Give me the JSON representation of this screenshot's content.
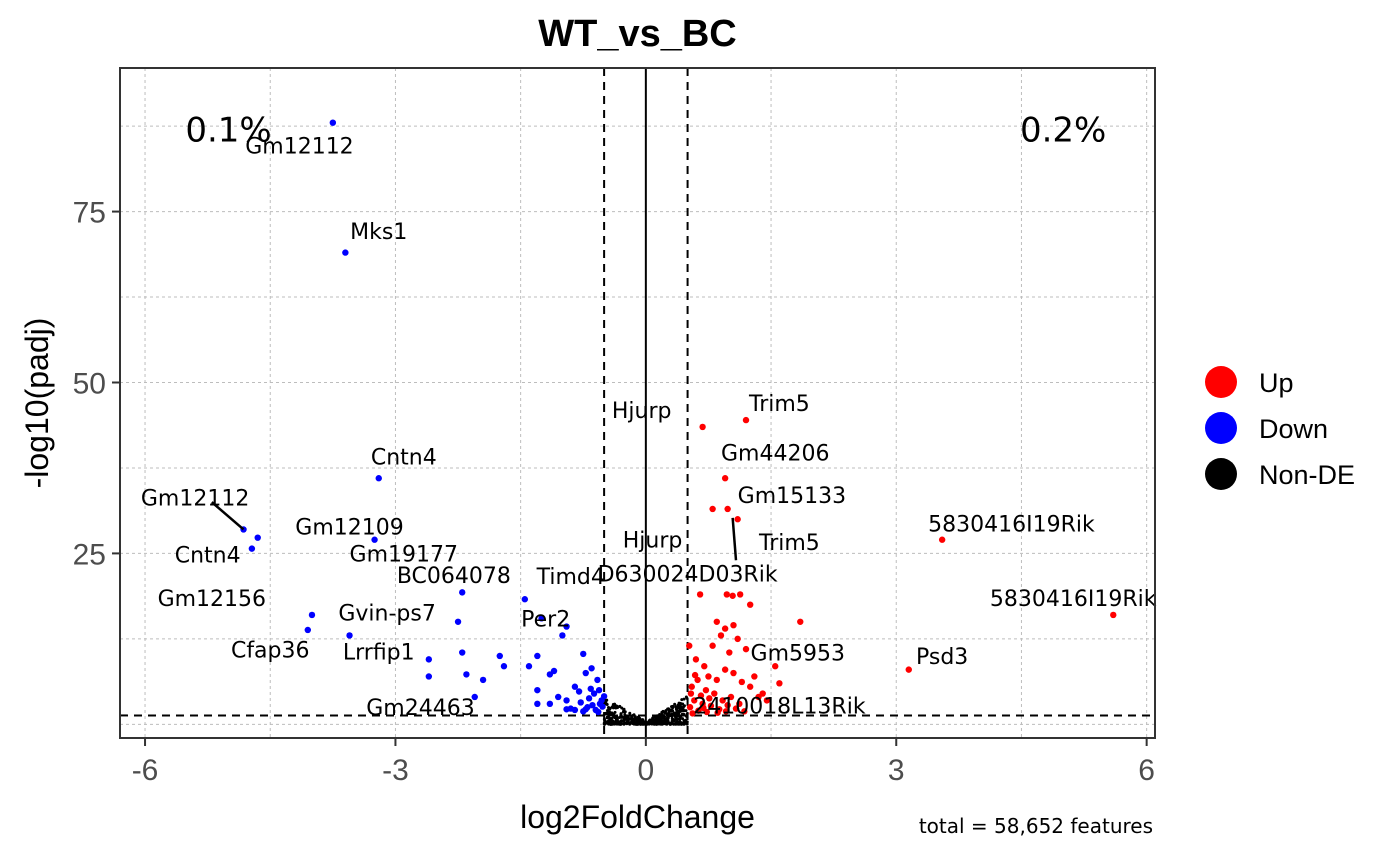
{
  "chart_data": {
    "type": "scatter",
    "title": "WT_vs_BC",
    "xlabel": "log2FoldChange",
    "ylabel": "-log10(padj)",
    "xlim": [
      -6.3,
      6.1
    ],
    "ylim": [
      -2,
      96
    ],
    "x_ticks": [
      -6,
      -3,
      0,
      3,
      6
    ],
    "x_tick_labels": [
      "-6",
      "-3",
      "0",
      "3",
      "6"
    ],
    "y_ticks": [
      25,
      50,
      75
    ],
    "y_tick_labels": [
      "25",
      "50",
      "75"
    ],
    "grid": true,
    "legend_position": "right",
    "legend": [
      {
        "label": "Up",
        "color": "#ff0000"
      },
      {
        "label": "Down",
        "color": "#0000ff"
      },
      {
        "label": "Non-DE",
        "color": "#000000"
      }
    ],
    "thresholds": {
      "fold_change": [
        -0.5,
        0.5
      ],
      "padj_line": 1.3
    },
    "caption": "total = 58,652 features",
    "percent_annotations": [
      {
        "text": "0.1%",
        "x": -5,
        "y": 87
      },
      {
        "text": "0.2%",
        "x": 5,
        "y": 87
      }
    ],
    "series": [
      {
        "name": "Up",
        "color": "#ff0000",
        "points": [
          [
            0.68,
            43.5
          ],
          [
            1.2,
            44.5
          ],
          [
            0.95,
            36
          ],
          [
            0.8,
            31.5
          ],
          [
            0.98,
            31.5
          ],
          [
            1.1,
            30
          ],
          [
            3.55,
            27
          ],
          [
            5.6,
            16
          ],
          [
            1.85,
            15
          ],
          [
            3.15,
            8
          ],
          [
            0.65,
            19
          ],
          [
            0.97,
            19
          ],
          [
            1.04,
            18.8
          ],
          [
            1.13,
            19
          ],
          [
            1.25,
            17.5
          ],
          [
            0.52,
            11.5
          ],
          [
            0.85,
            15
          ],
          [
            0.95,
            14
          ],
          [
            1.05,
            14.5
          ],
          [
            0.9,
            13
          ],
          [
            1.1,
            12.5
          ],
          [
            1.2,
            11
          ],
          [
            0.8,
            11.5
          ],
          [
            1.0,
            10.5
          ],
          [
            1.55,
            8.5
          ],
          [
            1.6,
            6
          ],
          [
            1.3,
            7
          ],
          [
            1.4,
            4.5
          ],
          [
            0.6,
            9.5
          ],
          [
            0.7,
            8.5
          ],
          [
            0.75,
            7
          ],
          [
            0.85,
            6.5
          ],
          [
            0.95,
            8
          ],
          [
            1.05,
            7.5
          ],
          [
            1.15,
            6.2
          ],
          [
            1.25,
            5.5
          ],
          [
            1.35,
            4
          ],
          [
            1.45,
            3.5
          ],
          [
            0.55,
            5.5
          ],
          [
            0.62,
            6.5
          ],
          [
            0.72,
            5
          ],
          [
            0.82,
            4.5
          ],
          [
            0.92,
            3.5
          ],
          [
            1.02,
            4
          ],
          [
            1.12,
            3
          ],
          [
            0.53,
            2.5
          ],
          [
            0.58,
            3.5
          ],
          [
            0.63,
            2
          ],
          [
            0.68,
            3
          ],
          [
            0.73,
            1.8
          ],
          [
            0.78,
            2.7
          ],
          [
            0.88,
            2.2
          ],
          [
            0.98,
            2.8
          ],
          [
            1.08,
            2.3
          ],
          [
            1.18,
            1.9
          ],
          [
            0.56,
            1.6
          ],
          [
            0.66,
            4.2
          ],
          [
            0.76,
            3.8
          ],
          [
            0.86,
            1.7
          ],
          [
            0.96,
            1.9
          ],
          [
            0.54,
            4.5
          ],
          [
            0.59,
            7.2
          ],
          [
            0.69,
            2.4
          ]
        ]
      },
      {
        "name": "Down",
        "color": "#0000ff",
        "points": [
          [
            -3.75,
            88
          ],
          [
            -3.6,
            69
          ],
          [
            -3.2,
            36
          ],
          [
            -4.82,
            28.5
          ],
          [
            -4.65,
            27.3
          ],
          [
            -4.72,
            25.7
          ],
          [
            -3.25,
            27
          ],
          [
            -2.2,
            19.3
          ],
          [
            -1.45,
            18.3
          ],
          [
            -1.25,
            15.5
          ],
          [
            -0.95,
            14.3
          ],
          [
            -1.0,
            13
          ],
          [
            -4.0,
            16
          ],
          [
            -4.05,
            13.8
          ],
          [
            -3.55,
            13
          ],
          [
            -2.25,
            15
          ],
          [
            -2.6,
            9.5
          ],
          [
            -2.2,
            10.5
          ],
          [
            -1.75,
            10
          ],
          [
            -1.7,
            8.5
          ],
          [
            -1.3,
            10
          ],
          [
            -1.4,
            8.5
          ],
          [
            -2.6,
            7
          ],
          [
            -2.15,
            7.3
          ],
          [
            -1.95,
            6.5
          ],
          [
            -2.05,
            4
          ],
          [
            -1.3,
            5
          ],
          [
            -1.3,
            3
          ],
          [
            -1.15,
            3
          ],
          [
            -1.15,
            7.3
          ],
          [
            -1.1,
            7.8
          ],
          [
            -0.75,
            10.3
          ],
          [
            -0.72,
            7.5
          ],
          [
            -0.65,
            8.2
          ],
          [
            -0.58,
            6.5
          ],
          [
            -0.62,
            4.5
          ],
          [
            -0.55,
            3
          ],
          [
            -1.05,
            4
          ],
          [
            -0.95,
            3.5
          ],
          [
            -0.85,
            5.5
          ],
          [
            -0.8,
            4.8
          ],
          [
            -0.78,
            3.2
          ],
          [
            -0.7,
            2.5
          ],
          [
            -0.68,
            3.8
          ],
          [
            -0.66,
            5.2
          ],
          [
            -0.6,
            2.1
          ],
          [
            -0.57,
            1.8
          ],
          [
            -0.52,
            2.6
          ],
          [
            -0.9,
            2.3
          ],
          [
            -0.95,
            2.2
          ],
          [
            -0.75,
            1.9
          ],
          [
            -0.85,
            2.1
          ],
          [
            -0.53,
            3.5
          ],
          [
            -0.56,
            5
          ],
          [
            -0.64,
            2.8
          ],
          [
            -0.72,
            2.2
          ],
          [
            -0.5,
            4.1
          ]
        ]
      }
    ],
    "non_de_description": "dense cluster of points near origin within |log2FoldChange| < 0.5",
    "gene_labels": [
      {
        "text": "Gm12112",
        "x": -4.15,
        "y": 83.5
      },
      {
        "text": "Mks1",
        "x": -3.2,
        "y": 71
      },
      {
        "text": "Cntn4",
        "x": -2.9,
        "y": 38
      },
      {
        "text": "Gm12112",
        "x": -5.4,
        "y": 32
      },
      {
        "text": "Gm12109",
        "x": -3.55,
        "y": 27.8
      },
      {
        "text": "Cntn4",
        "x": -5.25,
        "y": 23.7
      },
      {
        "text": "Gm19177",
        "x": -2.9,
        "y": 23.8
      },
      {
        "text": "BC064078",
        "x": -2.3,
        "y": 20.7
      },
      {
        "text": "Timd4",
        "x": -0.9,
        "y": 20.5
      },
      {
        "text": "Gm12156",
        "x": -5.2,
        "y": 17.3
      },
      {
        "text": "Gvin-ps7",
        "x": -3.1,
        "y": 15.2
      },
      {
        "text": "Per2",
        "x": -1.2,
        "y": 14.3
      },
      {
        "text": "Cfap36",
        "x": -4.5,
        "y": 9.8
      },
      {
        "text": "Lrrfip1",
        "x": -3.2,
        "y": 9.5
      },
      {
        "text": "Gm24463",
        "x": -2.7,
        "y": 1.4
      },
      {
        "text": "Hjurp",
        "x": -0.05,
        "y": 44.8
      },
      {
        "text": "Trim5",
        "x": 1.6,
        "y": 45.8
      },
      {
        "text": "Gm44206",
        "x": 1.55,
        "y": 38.6
      },
      {
        "text": "Gm15133",
        "x": 1.75,
        "y": 32.4
      },
      {
        "text": "5830416I19Rik",
        "x": 4.38,
        "y": 28.2
      },
      {
        "text": "Hjurp",
        "x": 0.08,
        "y": 25.9
      },
      {
        "text": "Trim5",
        "x": 1.72,
        "y": 25.5
      },
      {
        "text": "D630024D03Rik",
        "x": 0.5,
        "y": 20.9
      },
      {
        "text": "5830416I19Rik",
        "x": 5.12,
        "y": 17.3
      },
      {
        "text": "Gm5953",
        "x": 1.82,
        "y": 9.3
      },
      {
        "text": "Psd3",
        "x": 3.55,
        "y": 8.8
      },
      {
        "text": "2410018L13Rik",
        "x": 1.6,
        "y": 1.6
      }
    ],
    "label_connectors": [
      [
        -5.2,
        32.5,
        -4.82,
        28.5
      ],
      [
        1.04,
        30.2,
        1.08,
        24
      ]
    ]
  }
}
